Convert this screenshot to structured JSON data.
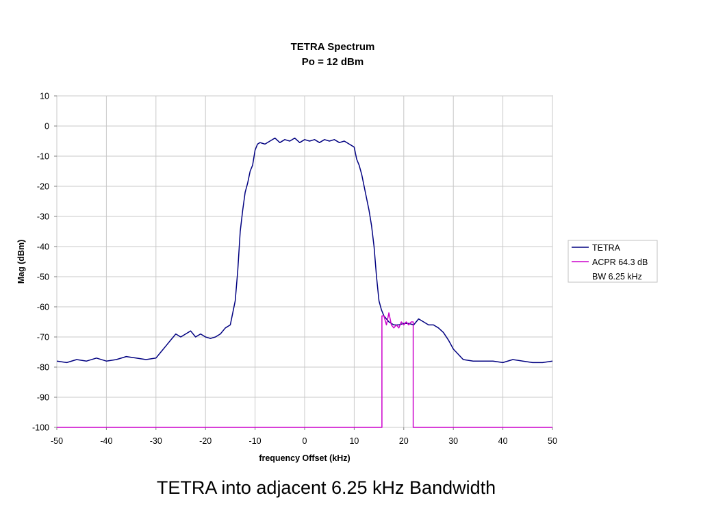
{
  "slide": {
    "caption": "TETRA into adjacent 6.25 kHz Bandwidth"
  },
  "chart_data": {
    "type": "line",
    "title": [
      "TETRA Spectrum",
      "Po = 12 dBm"
    ],
    "xlabel": "frequency Offset (kHz)",
    "ylabel": "Mag (dBm)",
    "xlim": [
      -50,
      50
    ],
    "ylim": [
      -100,
      10
    ],
    "xticks": [
      -50,
      -40,
      -30,
      -20,
      -10,
      0,
      10,
      20,
      30,
      40,
      50
    ],
    "yticks": [
      10,
      0,
      -10,
      -20,
      -30,
      -40,
      -50,
      -60,
      -70,
      -80,
      -90,
      -100
    ],
    "grid": true,
    "legend": {
      "placement": "right",
      "entries": [
        "TETRA",
        "ACPR 64.3 dB",
        "BW 6.25 kHz"
      ]
    },
    "series": [
      {
        "name": "TETRA",
        "color": "#000080",
        "x": [
          -50,
          -48,
          -46,
          -44,
          -42,
          -40,
          -38,
          -36,
          -34,
          -32,
          -30,
          -29,
          -28,
          -27,
          -26,
          -25,
          -24,
          -23,
          -22,
          -21,
          -20,
          -19,
          -18,
          -17,
          -16,
          -15,
          -14.5,
          -14,
          -13.5,
          -13,
          -12.5,
          -12,
          -11.5,
          -11,
          -10.5,
          -10,
          -9.5,
          -9,
          -8,
          -7,
          -6,
          -5,
          -4,
          -3,
          -2,
          -1,
          0,
          1,
          2,
          3,
          4,
          5,
          6,
          7,
          8,
          9,
          10,
          10.5,
          11,
          11.5,
          12,
          12.5,
          13,
          13.5,
          14,
          14.5,
          15,
          15.5,
          16,
          17,
          18,
          19,
          20,
          21,
          22,
          23,
          24,
          25,
          26,
          27,
          28,
          29,
          30,
          32,
          34,
          36,
          38,
          40,
          42,
          44,
          46,
          48,
          50
        ],
        "y": [
          -78,
          -78.5,
          -77.5,
          -78,
          -77,
          -78,
          -77.5,
          -76.5,
          -77,
          -77.5,
          -77,
          -75,
          -73,
          -71,
          -69,
          -70,
          -69,
          -68,
          -70,
          -69,
          -70,
          -70.5,
          -70,
          -69,
          -67,
          -66,
          -62,
          -58,
          -48,
          -35,
          -28,
          -22,
          -19,
          -15,
          -13,
          -8,
          -6,
          -5.5,
          -6,
          -5,
          -4,
          -5.5,
          -4.5,
          -5,
          -4,
          -5.5,
          -4.5,
          -5,
          -4.5,
          -5.5,
          -4.5,
          -5,
          -4.5,
          -5.5,
          -5,
          -6,
          -7,
          -11,
          -13,
          -16,
          -20,
          -24,
          -28,
          -33,
          -40,
          -50,
          -58,
          -61,
          -63,
          -65,
          -66,
          -66,
          -65.5,
          -65.5,
          -66,
          -64,
          -65,
          -66,
          -66,
          -67,
          -68.5,
          -71,
          -74,
          -77.5,
          -78,
          -78,
          -78,
          -78.5,
          -77.5,
          -78,
          -78.5,
          -78.5,
          -78
        ]
      },
      {
        "name": "ACPR 64.3 dB",
        "color": "#CC00CC",
        "x": [
          -50,
          15.6,
          15.6,
          16,
          16.5,
          17,
          17.5,
          18,
          18.5,
          19,
          19.5,
          20,
          20.5,
          21,
          21.5,
          21.9,
          21.9,
          50
        ],
        "y": [
          -100,
          -100,
          -63,
          -63,
          -66,
          -62,
          -66,
          -67,
          -66,
          -67,
          -65,
          -66,
          -65,
          -66,
          -65,
          -65,
          -100,
          -100
        ]
      }
    ]
  }
}
